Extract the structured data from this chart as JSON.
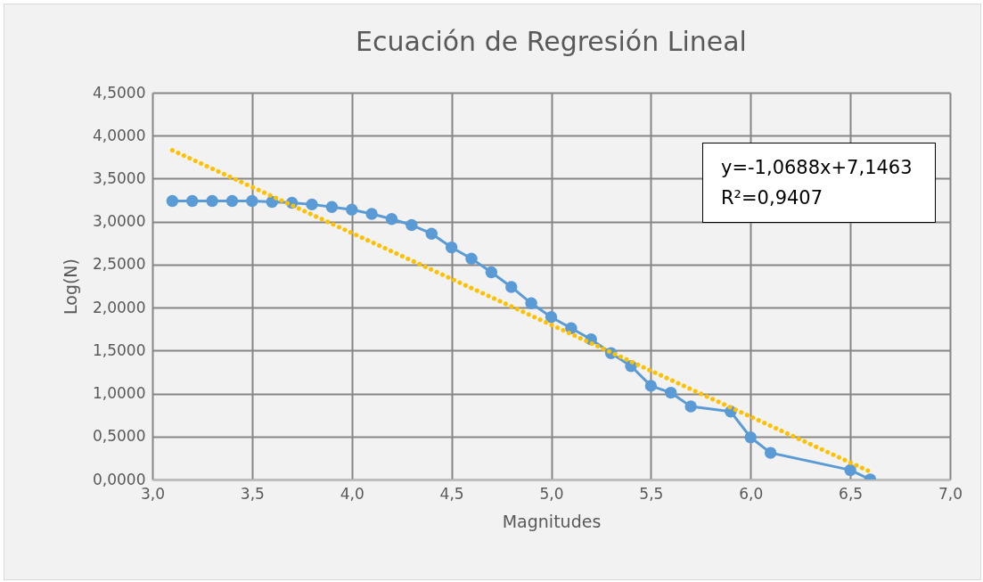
{
  "chart_data": {
    "type": "line",
    "title": "Ecuación de Regresión Lineal",
    "xlabel": "Magnitudes",
    "ylabel": "Log(N)",
    "x": [
      3.1,
      3.2,
      3.3,
      3.4,
      3.5,
      3.6,
      3.7,
      3.8,
      3.9,
      4.0,
      4.1,
      4.2,
      4.3,
      4.4,
      4.5,
      4.6,
      4.7,
      4.8,
      4.9,
      5.0,
      5.1,
      5.2,
      5.3,
      5.4,
      5.5,
      5.6,
      5.7,
      5.9,
      6.0,
      6.1,
      6.5,
      6.6
    ],
    "series": [
      {
        "color": "#5b9bd5",
        "marker": "circle",
        "values": [
          3.24,
          3.24,
          3.24,
          3.24,
          3.24,
          3.23,
          3.22,
          3.2,
          3.17,
          3.14,
          3.09,
          3.03,
          2.96,
          2.86,
          2.7,
          2.57,
          2.41,
          2.24,
          2.05,
          1.89,
          1.76,
          1.63,
          1.47,
          1.32,
          1.09,
          1.01,
          0.85,
          0.79,
          0.49,
          0.31,
          0.11,
          0.0
        ]
      },
      {
        "color": "#ffc000",
        "marker": "none",
        "line_style": "dotted",
        "x": [
          3.1,
          6.6
        ],
        "values": [
          3.83,
          0.09
        ]
      }
    ],
    "xlim": [
      3.0,
      7.0
    ],
    "xticks": [
      {
        "value": 3.0,
        "label": "3,0"
      },
      {
        "value": 3.5,
        "label": "3,5"
      },
      {
        "value": 4.0,
        "label": "4,0"
      },
      {
        "value": 4.5,
        "label": "4,5"
      },
      {
        "value": 5.0,
        "label": "5,0"
      },
      {
        "value": 5.5,
        "label": "5,5"
      },
      {
        "value": 6.0,
        "label": "6,0"
      },
      {
        "value": 6.5,
        "label": "6,5"
      },
      {
        "value": 7.0,
        "label": "7,0"
      }
    ],
    "ylim": [
      0,
      4.5
    ],
    "yticks": [
      {
        "value": 0,
        "label": "0,0000"
      },
      {
        "value": 0.5,
        "label": "0,5000"
      },
      {
        "value": 1.0,
        "label": "1,0000"
      },
      {
        "value": 1.5,
        "label": "1,5000"
      },
      {
        "value": 2.0,
        "label": "2,0000"
      },
      {
        "value": 2.5,
        "label": "2,5000"
      },
      {
        "value": 3.0,
        "label": "3,0000"
      },
      {
        "value": 3.5,
        "label": "3,5000"
      },
      {
        "value": 4.0,
        "label": "4,0000"
      },
      {
        "value": 4.5,
        "label": "4,5000"
      }
    ],
    "grid": true,
    "annotations": [
      "y=-1,0688x+7,1463",
      "R²=0,9407"
    ]
  }
}
